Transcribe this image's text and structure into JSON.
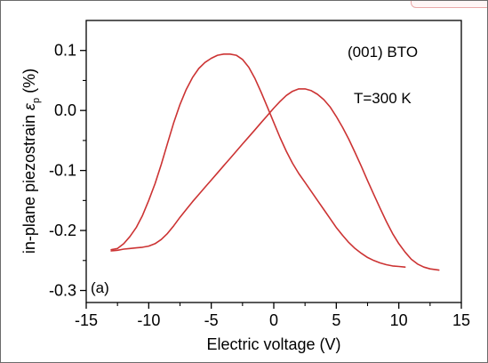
{
  "chart_data": {
    "type": "line",
    "title": "",
    "xlabel": "Electric voltage (V)",
    "ylabel_main": "in-plane piezostrain ",
    "ylabel_symbol": "ε",
    "ylabel_subscript": "p",
    "ylabel_unit": " (%)",
    "xlim": [
      -15,
      15
    ],
    "ylim": [
      -0.32,
      0.15
    ],
    "xticks": [
      -15,
      -10,
      -5,
      0,
      5,
      10,
      15
    ],
    "yticks": [
      0.1,
      0.0,
      -0.1,
      -0.2,
      -0.3
    ],
    "ytick_labels": [
      "0.1",
      "0.0",
      "-0.1",
      "-0.2",
      "-0.3"
    ],
    "xtick_labels": [
      "-15",
      "-10",
      "-5",
      "0",
      "5",
      "10",
      "15"
    ],
    "grid": false,
    "annotations": {
      "material": "(001) BTO",
      "temperature": "T=300 K",
      "panel": "(a)"
    },
    "line_color": "#cc3333",
    "series": [
      {
        "name": "",
        "x": [
          -13,
          -12.5,
          -12,
          -11.5,
          -11,
          -10.5,
          -10,
          -9.5,
          -9,
          -8.5,
          -8,
          -7.5,
          -7,
          -6.5,
          -6,
          -5.5,
          -5,
          -4.5,
          -4,
          -3.5,
          -3,
          -2.5,
          -2,
          -1.5,
          -1,
          -0.5,
          0,
          0.5,
          1,
          1.5,
          2,
          2.5,
          3,
          3.5,
          4,
          4.5,
          5,
          5.5,
          6,
          6.5,
          7,
          7.5,
          8,
          8.5,
          9,
          9.5,
          10,
          10.5
        ],
        "y": [
          -0.232,
          -0.23,
          -0.222,
          -0.21,
          -0.195,
          -0.175,
          -0.15,
          -0.122,
          -0.09,
          -0.055,
          -0.02,
          0.01,
          0.035,
          0.055,
          0.07,
          0.08,
          0.087,
          0.092,
          0.094,
          0.094,
          0.092,
          0.085,
          0.072,
          0.053,
          0.03,
          0.005,
          -0.02,
          -0.045,
          -0.068,
          -0.088,
          -0.105,
          -0.12,
          -0.135,
          -0.15,
          -0.165,
          -0.18,
          -0.195,
          -0.208,
          -0.22,
          -0.23,
          -0.238,
          -0.245,
          -0.25,
          -0.254,
          -0.257,
          -0.259,
          -0.26,
          -0.261
        ]
      },
      {
        "name": "",
        "x": [
          -13,
          -12.5,
          -12,
          -11.5,
          -11,
          -10.5,
          -10,
          -9.5,
          -9,
          -8.5,
          -8,
          -7.5,
          -7,
          -6.5,
          -6,
          -5.5,
          -5,
          -4.5,
          -4,
          -3.5,
          -3,
          -2.5,
          -2,
          -1.5,
          -1,
          -0.5,
          0,
          0.5,
          1,
          1.5,
          2,
          2.5,
          3,
          3.5,
          4,
          4.5,
          5,
          5.5,
          6,
          6.5,
          7,
          7.5,
          8,
          8.5,
          9,
          9.5,
          10,
          10.5,
          11,
          11.5,
          12,
          12.5,
          13.2
        ],
        "y": [
          -0.234,
          -0.233,
          -0.231,
          -0.23,
          -0.229,
          -0.228,
          -0.226,
          -0.222,
          -0.215,
          -0.205,
          -0.192,
          -0.178,
          -0.165,
          -0.152,
          -0.14,
          -0.128,
          -0.116,
          -0.104,
          -0.092,
          -0.08,
          -0.068,
          -0.056,
          -0.044,
          -0.032,
          -0.02,
          -0.008,
          0.004,
          0.015,
          0.025,
          0.032,
          0.036,
          0.036,
          0.033,
          0.027,
          0.018,
          0.006,
          -0.01,
          -0.028,
          -0.048,
          -0.07,
          -0.093,
          -0.117,
          -0.14,
          -0.163,
          -0.185,
          -0.205,
          -0.222,
          -0.236,
          -0.248,
          -0.256,
          -0.261,
          -0.264,
          -0.266
        ]
      }
    ]
  }
}
